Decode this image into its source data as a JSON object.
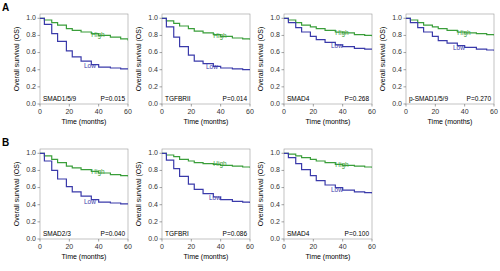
{
  "chart_data": [
    {
      "type": "step",
      "panel": "A",
      "title": "SMAD1/5/9",
      "xlabel": "Time (months)",
      "ylabel": "Overall survival (OS)",
      "xlim": [
        0,
        60
      ],
      "ylim": [
        0.0,
        1.05
      ],
      "xticks": [
        0,
        20,
        40,
        60
      ],
      "yticks": [
        {
          "value": 0.0,
          "label": "0.0"
        },
        0.2,
        0.4,
        0.6,
        0.8,
        {
          "value": 1.0,
          "label": "1.0"
        }
      ],
      "grid": false,
      "series": [
        {
          "name": "High",
          "color": "#3a9e3a",
          "x": [
            0,
            3,
            8,
            12,
            18,
            22,
            28,
            35,
            40,
            48,
            55,
            60
          ],
          "values": [
            1.0,
            0.98,
            0.95,
            0.92,
            0.88,
            0.86,
            0.84,
            0.82,
            0.8,
            0.78,
            0.76,
            0.74
          ]
        },
        {
          "name": "Low",
          "color": "#3a3aaa",
          "x": [
            0,
            3,
            8,
            12,
            18,
            22,
            28,
            35,
            40,
            48,
            55,
            60
          ],
          "values": [
            1.0,
            0.93,
            0.82,
            0.73,
            0.62,
            0.55,
            0.5,
            0.46,
            0.43,
            0.42,
            0.41,
            0.41
          ]
        }
      ],
      "annotations": [
        {
          "text": "High",
          "x": 35,
          "y": 0.8,
          "color": "#3a9e3a"
        },
        {
          "text": "Low",
          "x": 30,
          "y": 0.44,
          "color": "#3a3aaa"
        },
        {
          "text": "P=0.015"
        }
      ]
    },
    {
      "type": "step",
      "panel": "A",
      "title": "TGFBRII",
      "xlabel": "Time (months)",
      "ylabel": "Overall survival (OS)",
      "xlim": [
        0,
        60
      ],
      "ylim": [
        0.0,
        1.05
      ],
      "xticks": [
        0,
        20,
        40,
        60
      ],
      "yticks": [
        {
          "value": 0.0,
          "label": "0.0"
        },
        0.2,
        0.4,
        0.6,
        0.8,
        {
          "value": 1.0,
          "label": "1.0"
        }
      ],
      "grid": false,
      "series": [
        {
          "name": "High",
          "color": "#3a9e3a",
          "x": [
            0,
            3,
            8,
            12,
            18,
            22,
            28,
            35,
            40,
            48,
            55,
            60
          ],
          "values": [
            1.0,
            0.97,
            0.94,
            0.91,
            0.88,
            0.85,
            0.83,
            0.81,
            0.79,
            0.77,
            0.76,
            0.75
          ]
        },
        {
          "name": "Low",
          "color": "#3a3aaa",
          "x": [
            0,
            3,
            8,
            12,
            18,
            22,
            28,
            35,
            40,
            48,
            55,
            60
          ],
          "values": [
            1.0,
            0.9,
            0.78,
            0.67,
            0.57,
            0.5,
            0.47,
            0.44,
            0.42,
            0.41,
            0.4,
            0.4
          ]
        }
      ],
      "annotations": [
        {
          "text": "High",
          "x": 35,
          "y": 0.79,
          "color": "#3a9e3a"
        },
        {
          "text": "Low",
          "x": 30,
          "y": 0.43,
          "color": "#3a3aaa"
        },
        {
          "text": "P=0.014"
        }
      ]
    },
    {
      "type": "step",
      "panel": "A",
      "title": "SMAD4",
      "xlabel": "Time (months)",
      "ylabel": "Overall survival (OS)",
      "xlim": [
        0,
        60
      ],
      "ylim": [
        0.0,
        1.05
      ],
      "xticks": [
        0,
        20,
        40,
        60
      ],
      "yticks": [
        {
          "value": 0.0,
          "label": "0.0"
        },
        0.2,
        0.4,
        0.6,
        0.8,
        {
          "value": 1.0,
          "label": "1.0"
        }
      ],
      "grid": false,
      "series": [
        {
          "name": "High",
          "color": "#3a9e3a",
          "x": [
            0,
            3,
            8,
            12,
            18,
            22,
            28,
            35,
            40,
            48,
            55,
            60
          ],
          "values": [
            1.0,
            0.98,
            0.95,
            0.92,
            0.9,
            0.88,
            0.86,
            0.84,
            0.83,
            0.81,
            0.8,
            0.79
          ]
        },
        {
          "name": "Low",
          "color": "#3a3aaa",
          "x": [
            0,
            3,
            8,
            12,
            18,
            22,
            28,
            35,
            40,
            48,
            55,
            60
          ],
          "values": [
            1.0,
            0.95,
            0.89,
            0.84,
            0.79,
            0.75,
            0.72,
            0.69,
            0.67,
            0.65,
            0.64,
            0.64
          ]
        }
      ],
      "annotations": [
        {
          "text": "High",
          "x": 35,
          "y": 0.83,
          "color": "#3a9e3a"
        },
        {
          "text": "Low",
          "x": 32,
          "y": 0.67,
          "color": "#3a3aaa"
        },
        {
          "text": "P=0.268"
        }
      ]
    },
    {
      "type": "step",
      "panel": "A",
      "title": "p-SMAD1/5/9",
      "xlabel": "Time (months)",
      "ylabel": "Overall survival (OS)",
      "xlim": [
        0,
        60
      ],
      "ylim": [
        0.0,
        1.05
      ],
      "xticks": [
        0,
        20,
        40,
        60
      ],
      "yticks": [
        {
          "value": 0.0,
          "label": "0.0"
        },
        0.2,
        0.4,
        0.6,
        0.8,
        {
          "value": 1.0,
          "label": "1.0"
        }
      ],
      "grid": false,
      "series": [
        {
          "name": "High",
          "color": "#3a9e3a",
          "x": [
            0,
            3,
            8,
            12,
            18,
            22,
            28,
            35,
            40,
            48,
            55,
            60
          ],
          "values": [
            1.0,
            0.98,
            0.95,
            0.92,
            0.9,
            0.88,
            0.86,
            0.84,
            0.83,
            0.82,
            0.81,
            0.8
          ]
        },
        {
          "name": "Low",
          "color": "#3a3aaa",
          "x": [
            0,
            3,
            8,
            12,
            18,
            22,
            28,
            35,
            40,
            48,
            55,
            60
          ],
          "values": [
            1.0,
            0.95,
            0.89,
            0.84,
            0.79,
            0.74,
            0.71,
            0.68,
            0.66,
            0.64,
            0.63,
            0.62
          ]
        }
      ],
      "annotations": [
        {
          "text": "High",
          "x": 35,
          "y": 0.83,
          "color": "#3a9e3a"
        },
        {
          "text": "Low",
          "x": 32,
          "y": 0.65,
          "color": "#3a3aaa"
        },
        {
          "text": "P=0.270"
        }
      ]
    },
    {
      "type": "step",
      "panel": "B",
      "title": "SMAD2/3",
      "xlabel": "Time (months)",
      "ylabel": "Overall survival (OS)",
      "xlim": [
        0,
        60
      ],
      "ylim": [
        0.0,
        1.05
      ],
      "xticks": [
        0,
        20,
        40,
        60
      ],
      "yticks": [
        {
          "value": 0.0,
          "label": "0.0"
        },
        0.2,
        0.4,
        0.6,
        0.8,
        {
          "value": 1.0,
          "label": "1.0"
        }
      ],
      "grid": false,
      "series": [
        {
          "name": "High",
          "color": "#3a9e3a",
          "x": [
            0,
            3,
            8,
            12,
            18,
            22,
            28,
            35,
            40,
            48,
            55,
            60
          ],
          "values": [
            1.0,
            0.97,
            0.93,
            0.89,
            0.85,
            0.83,
            0.81,
            0.79,
            0.77,
            0.75,
            0.74,
            0.73
          ]
        },
        {
          "name": "Low",
          "color": "#3a3aaa",
          "x": [
            0,
            3,
            8,
            12,
            18,
            22,
            28,
            35,
            40,
            48,
            55,
            60
          ],
          "values": [
            1.0,
            0.91,
            0.8,
            0.7,
            0.61,
            0.55,
            0.5,
            0.46,
            0.43,
            0.42,
            0.41,
            0.41
          ]
        }
      ],
      "annotations": [
        {
          "text": "High",
          "x": 35,
          "y": 0.78,
          "color": "#3a9e3a"
        },
        {
          "text": "Low",
          "x": 30,
          "y": 0.43,
          "color": "#3a3aaa"
        },
        {
          "text": "P=0.040"
        }
      ]
    },
    {
      "type": "step",
      "panel": "B",
      "title": "TGFBRI",
      "xlabel": "Time (months)",
      "ylabel": "Overall survival (OS)",
      "xlim": [
        0,
        60
      ],
      "ylim": [
        0.0,
        1.05
      ],
      "xticks": [
        0,
        20,
        40,
        60
      ],
      "yticks": [
        {
          "value": 0.0,
          "label": "0.0"
        },
        0.2,
        0.4,
        0.6,
        0.8,
        {
          "value": 1.0,
          "label": "1.0"
        }
      ],
      "grid": false,
      "series": [
        {
          "name": "High",
          "color": "#3a9e3a",
          "x": [
            0,
            3,
            8,
            12,
            18,
            22,
            28,
            35,
            40,
            48,
            55,
            60
          ],
          "values": [
            1.0,
            0.98,
            0.96,
            0.93,
            0.91,
            0.89,
            0.88,
            0.87,
            0.86,
            0.85,
            0.84,
            0.83
          ]
        },
        {
          "name": "Low",
          "color": "#3a3aaa",
          "x": [
            0,
            3,
            8,
            12,
            18,
            22,
            28,
            35,
            40,
            48,
            55,
            60
          ],
          "values": [
            1.0,
            0.92,
            0.82,
            0.73,
            0.64,
            0.58,
            0.53,
            0.49,
            0.46,
            0.44,
            0.43,
            0.42
          ]
        }
      ],
      "annotations": [
        {
          "text": "High",
          "x": 35,
          "y": 0.87,
          "color": "#3a9e3a"
        },
        {
          "text": "Low",
          "x": 32,
          "y": 0.48,
          "color": "#3a3aaa"
        },
        {
          "text": "P=0.086"
        }
      ]
    },
    {
      "type": "step",
      "panel": "B",
      "title": "SMAD4",
      "xlabel": "Time (months)",
      "ylabel": "Overall survival (OS)",
      "xlim": [
        0,
        60
      ],
      "ylim": [
        0.0,
        1.05
      ],
      "xticks": [
        0,
        20,
        40,
        60
      ],
      "yticks": [
        {
          "value": 0.0,
          "label": "0.0"
        },
        0.2,
        0.4,
        0.6,
        0.8,
        {
          "value": 1.0,
          "label": "1.0"
        }
      ],
      "grid": false,
      "series": [
        {
          "name": "High",
          "color": "#3a9e3a",
          "x": [
            0,
            3,
            8,
            12,
            18,
            22,
            28,
            35,
            40,
            48,
            55,
            60
          ],
          "values": [
            1.0,
            0.99,
            0.97,
            0.95,
            0.93,
            0.91,
            0.89,
            0.87,
            0.86,
            0.85,
            0.84,
            0.83
          ]
        },
        {
          "name": "Low",
          "color": "#3a3aaa",
          "x": [
            0,
            3,
            8,
            12,
            18,
            22,
            28,
            35,
            40,
            48,
            55,
            60
          ],
          "values": [
            1.0,
            0.95,
            0.88,
            0.81,
            0.74,
            0.68,
            0.63,
            0.6,
            0.57,
            0.55,
            0.54,
            0.53
          ]
        }
      ],
      "annotations": [
        {
          "text": "High",
          "x": 35,
          "y": 0.86,
          "color": "#3a9e3a"
        },
        {
          "text": "Low",
          "x": 32,
          "y": 0.57,
          "color": "#3a3aaa"
        },
        {
          "text": "P=0.100"
        }
      ]
    }
  ]
}
